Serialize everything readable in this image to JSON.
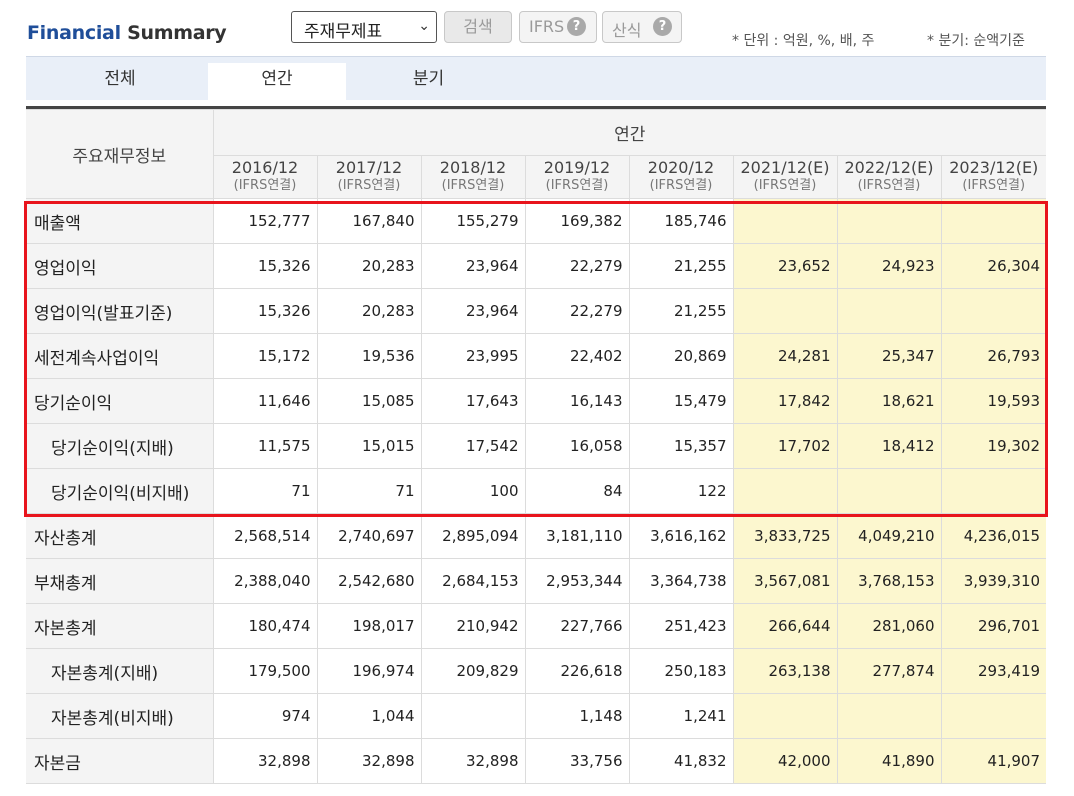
{
  "header": {
    "title_part1": "Financial",
    "title_part2": "Summary",
    "select_value": "주재무제표",
    "search_label": "검색",
    "ifrs_label": "IFRS",
    "formula_label": "산식",
    "help_icon": "question-mark-circle",
    "unit_note": "* 단위 : 억원, %, 배, 주",
    "quarter_note": "* 분기: 순액기준"
  },
  "tabs": {
    "all": "전체",
    "annual": "연간",
    "quarter": "분기"
  },
  "table": {
    "label_header": "주요재무정보",
    "group_header": "연간",
    "periods": [
      {
        "period": "2016/12",
        "basis": "(IFRS연결)"
      },
      {
        "period": "2017/12",
        "basis": "(IFRS연결)"
      },
      {
        "period": "2018/12",
        "basis": "(IFRS연결)"
      },
      {
        "period": "2019/12",
        "basis": "(IFRS연결)"
      },
      {
        "period": "2020/12",
        "basis": "(IFRS연결)"
      },
      {
        "period": "2021/12(E)",
        "basis": "(IFRS연결)"
      },
      {
        "period": "2022/12(E)",
        "basis": "(IFRS연결)"
      },
      {
        "period": "2023/12(E)",
        "basis": "(IFRS연결)"
      }
    ],
    "rows": [
      {
        "label": "매출액",
        "values": [
          "152,777",
          "167,840",
          "155,279",
          "169,382",
          "185,746",
          "",
          "",
          ""
        ]
      },
      {
        "label": "영업이익",
        "values": [
          "15,326",
          "20,283",
          "23,964",
          "22,279",
          "21,255",
          "23,652",
          "24,923",
          "26,304"
        ]
      },
      {
        "label": "영업이익(발표기준)",
        "values": [
          "15,326",
          "20,283",
          "23,964",
          "22,279",
          "21,255",
          "",
          "",
          ""
        ]
      },
      {
        "label": "세전계속사업이익",
        "values": [
          "15,172",
          "19,536",
          "23,995",
          "22,402",
          "20,869",
          "24,281",
          "25,347",
          "26,793"
        ]
      },
      {
        "label": "당기순이익",
        "values": [
          "11,646",
          "15,085",
          "17,643",
          "16,143",
          "15,479",
          "17,842",
          "18,621",
          "19,593"
        ]
      },
      {
        "label": "당기순이익(지배)",
        "values": [
          "11,575",
          "15,015",
          "17,542",
          "16,058",
          "15,357",
          "17,702",
          "18,412",
          "19,302"
        ]
      },
      {
        "label": "당기순이익(비지배)",
        "values": [
          "71",
          "71",
          "100",
          "84",
          "122",
          "",
          "",
          ""
        ]
      },
      {
        "label": "자산총계",
        "values": [
          "2,568,514",
          "2,740,697",
          "2,895,094",
          "3,181,110",
          "3,616,162",
          "3,833,725",
          "4,049,210",
          "4,236,015"
        ]
      },
      {
        "label": "부채총계",
        "values": [
          "2,388,040",
          "2,542,680",
          "2,684,153",
          "2,953,344",
          "3,364,738",
          "3,567,081",
          "3,768,153",
          "3,939,310"
        ]
      },
      {
        "label": "자본총계",
        "values": [
          "180,474",
          "198,017",
          "210,942",
          "227,766",
          "251,423",
          "266,644",
          "281,060",
          "296,701"
        ]
      },
      {
        "label": "자본총계(지배)",
        "values": [
          "179,500",
          "196,974",
          "209,829",
          "226,618",
          "250,183",
          "263,138",
          "277,874",
          "293,419"
        ]
      },
      {
        "label": "자본총계(비지배)",
        "values": [
          "974",
          "1,044",
          "",
          "1,148",
          "1,241",
          "",
          "",
          ""
        ]
      },
      {
        "label": "자본금",
        "values": [
          "32,898",
          "32,898",
          "32,898",
          "33,756",
          "41,832",
          "42,000",
          "41,890",
          "41,907"
        ]
      }
    ]
  },
  "colors": {
    "brand": "#1f4e99",
    "estimate_bg": "#fcf7cf",
    "highlight_border": "#e8141c",
    "tab_bar_bg": "#e9eff8"
  }
}
